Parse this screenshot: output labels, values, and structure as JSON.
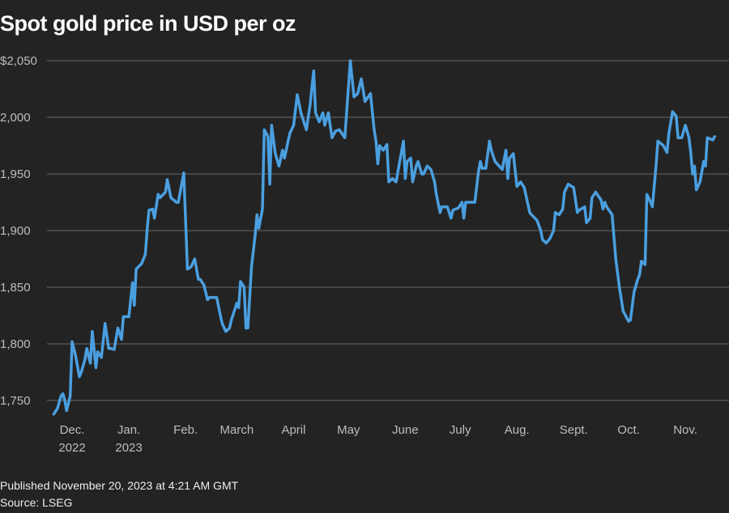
{
  "chart_data": {
    "type": "line",
    "title": "Spot gold price in USD per oz",
    "xlabel": "",
    "ylabel": "",
    "ylim": [
      1735,
      2055
    ],
    "grid": true,
    "line_color": "#4a9fe0",
    "background": "#232323",
    "y_ticks": [
      {
        "value": 2050,
        "label": "$2,050"
      },
      {
        "value": 2000,
        "label": "2,000"
      },
      {
        "value": 1950,
        "label": "1,950"
      },
      {
        "value": 1900,
        "label": "1,900"
      },
      {
        "value": 1850,
        "label": "1,850"
      },
      {
        "value": 1800,
        "label": "1,800"
      },
      {
        "value": 1750,
        "label": "1,750"
      }
    ],
    "x_ticks": [
      {
        "date": "2022-12-01",
        "label": "Dec.",
        "sublabel": "2022"
      },
      {
        "date": "2023-01-01",
        "label": "Jan.",
        "sublabel": "2023"
      },
      {
        "date": "2023-02-01",
        "label": "Feb.",
        "sublabel": ""
      },
      {
        "date": "2023-03-01",
        "label": "March",
        "sublabel": ""
      },
      {
        "date": "2023-04-01",
        "label": "April",
        "sublabel": ""
      },
      {
        "date": "2023-05-01",
        "label": "May",
        "sublabel": ""
      },
      {
        "date": "2023-06-01",
        "label": "June",
        "sublabel": ""
      },
      {
        "date": "2023-07-01",
        "label": "July",
        "sublabel": ""
      },
      {
        "date": "2023-08-01",
        "label": "Aug.",
        "sublabel": ""
      },
      {
        "date": "2023-09-01",
        "label": "Sept.",
        "sublabel": ""
      },
      {
        "date": "2023-10-01",
        "label": "Oct.",
        "sublabel": ""
      },
      {
        "date": "2023-11-01",
        "label": "Nov.",
        "sublabel": ""
      }
    ],
    "points": [
      [
        "2022-11-21",
        1738
      ],
      [
        "2022-11-23",
        1743
      ],
      [
        "2022-11-25",
        1754
      ],
      [
        "2022-11-26",
        1756
      ],
      [
        "2022-11-27",
        1750
      ],
      [
        "2022-11-28",
        1741
      ],
      [
        "2022-11-30",
        1754
      ],
      [
        "2022-12-01",
        1802
      ],
      [
        "2022-12-03",
        1789
      ],
      [
        "2022-12-05",
        1771
      ],
      [
        "2022-12-06",
        1775
      ],
      [
        "2022-12-08",
        1786
      ],
      [
        "2022-12-09",
        1796
      ],
      [
        "2022-12-11",
        1783
      ],
      [
        "2022-12-12",
        1811
      ],
      [
        "2022-12-14",
        1779
      ],
      [
        "2022-12-15",
        1793
      ],
      [
        "2022-12-17",
        1788
      ],
      [
        "2022-12-19",
        1818
      ],
      [
        "2022-12-21",
        1796
      ],
      [
        "2022-12-22",
        1796
      ],
      [
        "2022-12-24",
        1795
      ],
      [
        "2022-12-26",
        1814
      ],
      [
        "2022-12-28",
        1804
      ],
      [
        "2022-12-29",
        1824
      ],
      [
        "2023-01-01",
        1824
      ],
      [
        "2023-01-03",
        1854
      ],
      [
        "2023-01-04",
        1834
      ],
      [
        "2023-01-05",
        1866
      ],
      [
        "2023-01-08",
        1871
      ],
      [
        "2023-01-10",
        1879
      ],
      [
        "2023-01-11",
        1901
      ],
      [
        "2023-01-12",
        1918
      ],
      [
        "2023-01-14",
        1919
      ],
      [
        "2023-01-15",
        1911
      ],
      [
        "2023-01-17",
        1932
      ],
      [
        "2023-01-18",
        1929
      ],
      [
        "2023-01-21",
        1934
      ],
      [
        "2023-01-22",
        1945
      ],
      [
        "2023-01-24",
        1929
      ],
      [
        "2023-01-27",
        1925
      ],
      [
        "2023-01-28",
        1925
      ],
      [
        "2023-01-31",
        1951
      ],
      [
        "2023-02-02",
        1866
      ],
      [
        "2023-02-04",
        1868
      ],
      [
        "2023-02-06",
        1875
      ],
      [
        "2023-02-08",
        1857
      ],
      [
        "2023-02-09",
        1857
      ],
      [
        "2023-02-11",
        1852
      ],
      [
        "2023-02-13",
        1839
      ],
      [
        "2023-02-14",
        1841
      ],
      [
        "2023-02-18",
        1841
      ],
      [
        "2023-02-20",
        1825
      ],
      [
        "2023-02-21",
        1818
      ],
      [
        "2023-02-23",
        1811
      ],
      [
        "2023-02-25",
        1814
      ],
      [
        "2023-02-26",
        1821
      ],
      [
        "2023-03-01",
        1836
      ],
      [
        "2023-03-02",
        1832
      ],
      [
        "2023-03-03",
        1855
      ],
      [
        "2023-03-05",
        1850
      ],
      [
        "2023-03-06",
        1814
      ],
      [
        "2023-03-07",
        1814
      ],
      [
        "2023-03-09",
        1868
      ],
      [
        "2023-03-11",
        1896
      ],
      [
        "2023-03-12",
        1914
      ],
      [
        "2023-03-13",
        1902
      ],
      [
        "2023-03-15",
        1919
      ],
      [
        "2023-03-16",
        1989
      ],
      [
        "2023-03-18",
        1983
      ],
      [
        "2023-03-19",
        1941
      ],
      [
        "2023-03-20",
        1993
      ],
      [
        "2023-03-22",
        1968
      ],
      [
        "2023-03-24",
        1957
      ],
      [
        "2023-03-26",
        1971
      ],
      [
        "2023-03-27",
        1964
      ],
      [
        "2023-03-29",
        1979
      ],
      [
        "2023-03-30",
        1986
      ],
      [
        "2023-04-01",
        1993
      ],
      [
        "2023-04-03",
        2020
      ],
      [
        "2023-04-05",
        2004
      ],
      [
        "2023-04-08",
        1989
      ],
      [
        "2023-04-10",
        2011
      ],
      [
        "2023-04-12",
        2041
      ],
      [
        "2023-04-13",
        2004
      ],
      [
        "2023-04-15",
        1996
      ],
      [
        "2023-04-17",
        2004
      ],
      [
        "2023-04-18",
        1993
      ],
      [
        "2023-04-20",
        2004
      ],
      [
        "2023-04-22",
        1982
      ],
      [
        "2023-04-24",
        1988
      ],
      [
        "2023-04-26",
        1989
      ],
      [
        "2023-04-29",
        1982
      ],
      [
        "2023-05-02",
        2050
      ],
      [
        "2023-05-04",
        2018
      ],
      [
        "2023-05-06",
        2021
      ],
      [
        "2023-05-08",
        2034
      ],
      [
        "2023-05-10",
        2014
      ],
      [
        "2023-05-13",
        2021
      ],
      [
        "2023-05-15",
        1989
      ],
      [
        "2023-05-16",
        1979
      ],
      [
        "2023-05-17",
        1959
      ],
      [
        "2023-05-18",
        1975
      ],
      [
        "2023-05-20",
        1971
      ],
      [
        "2023-05-22",
        1976
      ],
      [
        "2023-05-23",
        1943
      ],
      [
        "2023-05-25",
        1946
      ],
      [
        "2023-05-27",
        1943
      ],
      [
        "2023-05-29",
        1961
      ],
      [
        "2023-05-31",
        1979
      ],
      [
        "2023-06-01",
        1946
      ],
      [
        "2023-06-02",
        1961
      ],
      [
        "2023-06-04",
        1964
      ],
      [
        "2023-06-05",
        1943
      ],
      [
        "2023-06-07",
        1957
      ],
      [
        "2023-06-08",
        1961
      ],
      [
        "2023-06-10",
        1950
      ],
      [
        "2023-06-11",
        1950
      ],
      [
        "2023-06-13",
        1957
      ],
      [
        "2023-06-15",
        1954
      ],
      [
        "2023-06-17",
        1943
      ],
      [
        "2023-06-18",
        1932
      ],
      [
        "2023-06-20",
        1916
      ],
      [
        "2023-06-21",
        1921
      ],
      [
        "2023-06-24",
        1921
      ],
      [
        "2023-06-26",
        1911
      ],
      [
        "2023-06-27",
        1918
      ],
      [
        "2023-06-30",
        1920
      ],
      [
        "2023-07-02",
        1925
      ],
      [
        "2023-07-03",
        1911
      ],
      [
        "2023-07-04",
        1925
      ],
      [
        "2023-07-09",
        1925
      ],
      [
        "2023-07-11",
        1952
      ],
      [
        "2023-07-12",
        1961
      ],
      [
        "2023-07-13",
        1955
      ],
      [
        "2023-07-15",
        1955
      ],
      [
        "2023-07-17",
        1979
      ],
      [
        "2023-07-18",
        1971
      ],
      [
        "2023-07-20",
        1961
      ],
      [
        "2023-07-24",
        1954
      ],
      [
        "2023-07-26",
        1971
      ],
      [
        "2023-07-27",
        1946
      ],
      [
        "2023-07-28",
        1964
      ],
      [
        "2023-07-30",
        1968
      ],
      [
        "2023-08-01",
        1939
      ],
      [
        "2023-08-03",
        1943
      ],
      [
        "2023-08-05",
        1938
      ],
      [
        "2023-08-08",
        1916
      ],
      [
        "2023-08-09",
        1914
      ],
      [
        "2023-08-12",
        1909
      ],
      [
        "2023-08-14",
        1900
      ],
      [
        "2023-08-15",
        1892
      ],
      [
        "2023-08-17",
        1889
      ],
      [
        "2023-08-19",
        1893
      ],
      [
        "2023-08-21",
        1900
      ],
      [
        "2023-08-22",
        1916
      ],
      [
        "2023-08-24",
        1914
      ],
      [
        "2023-08-26",
        1919
      ],
      [
        "2023-08-27",
        1934
      ],
      [
        "2023-08-29",
        1941
      ],
      [
        "2023-09-01",
        1938
      ],
      [
        "2023-09-03",
        1916
      ],
      [
        "2023-09-04",
        1918
      ],
      [
        "2023-09-07",
        1921
      ],
      [
        "2023-09-08",
        1907
      ],
      [
        "2023-09-10",
        1911
      ],
      [
        "2023-09-11",
        1929
      ],
      [
        "2023-09-13",
        1934
      ],
      [
        "2023-09-16",
        1927
      ],
      [
        "2023-09-17",
        1919
      ],
      [
        "2023-09-18",
        1925
      ],
      [
        "2023-09-19",
        1921
      ],
      [
        "2023-09-22",
        1914
      ],
      [
        "2023-09-24",
        1875
      ],
      [
        "2023-09-26",
        1850
      ],
      [
        "2023-09-28",
        1829
      ],
      [
        "2023-10-01",
        1820
      ],
      [
        "2023-10-02",
        1821
      ],
      [
        "2023-10-04",
        1846
      ],
      [
        "2023-10-06",
        1857
      ],
      [
        "2023-10-07",
        1861
      ],
      [
        "2023-10-08",
        1873
      ],
      [
        "2023-10-10",
        1870
      ],
      [
        "2023-10-11",
        1932
      ],
      [
        "2023-10-13",
        1925
      ],
      [
        "2023-10-14",
        1921
      ],
      [
        "2023-10-16",
        1957
      ],
      [
        "2023-10-17",
        1979
      ],
      [
        "2023-10-20",
        1975
      ],
      [
        "2023-10-22",
        1969
      ],
      [
        "2023-10-23",
        1986
      ],
      [
        "2023-10-25",
        2005
      ],
      [
        "2023-10-27",
        2001
      ],
      [
        "2023-10-28",
        1982
      ],
      [
        "2023-10-30",
        1982
      ],
      [
        "2023-11-01",
        1993
      ],
      [
        "2023-11-03",
        1982
      ],
      [
        "2023-11-04",
        1968
      ],
      [
        "2023-11-05",
        1950
      ],
      [
        "2023-11-06",
        1957
      ],
      [
        "2023-11-07",
        1936
      ],
      [
        "2023-11-09",
        1943
      ],
      [
        "2023-11-11",
        1961
      ],
      [
        "2023-11-12",
        1957
      ],
      [
        "2023-11-13",
        1982
      ],
      [
        "2023-11-16",
        1980
      ],
      [
        "2023-11-17",
        1983
      ]
    ]
  },
  "footer": {
    "published": "Published November 20, 2023 at 4:21 AM GMT",
    "source": "Source: LSEG"
  }
}
